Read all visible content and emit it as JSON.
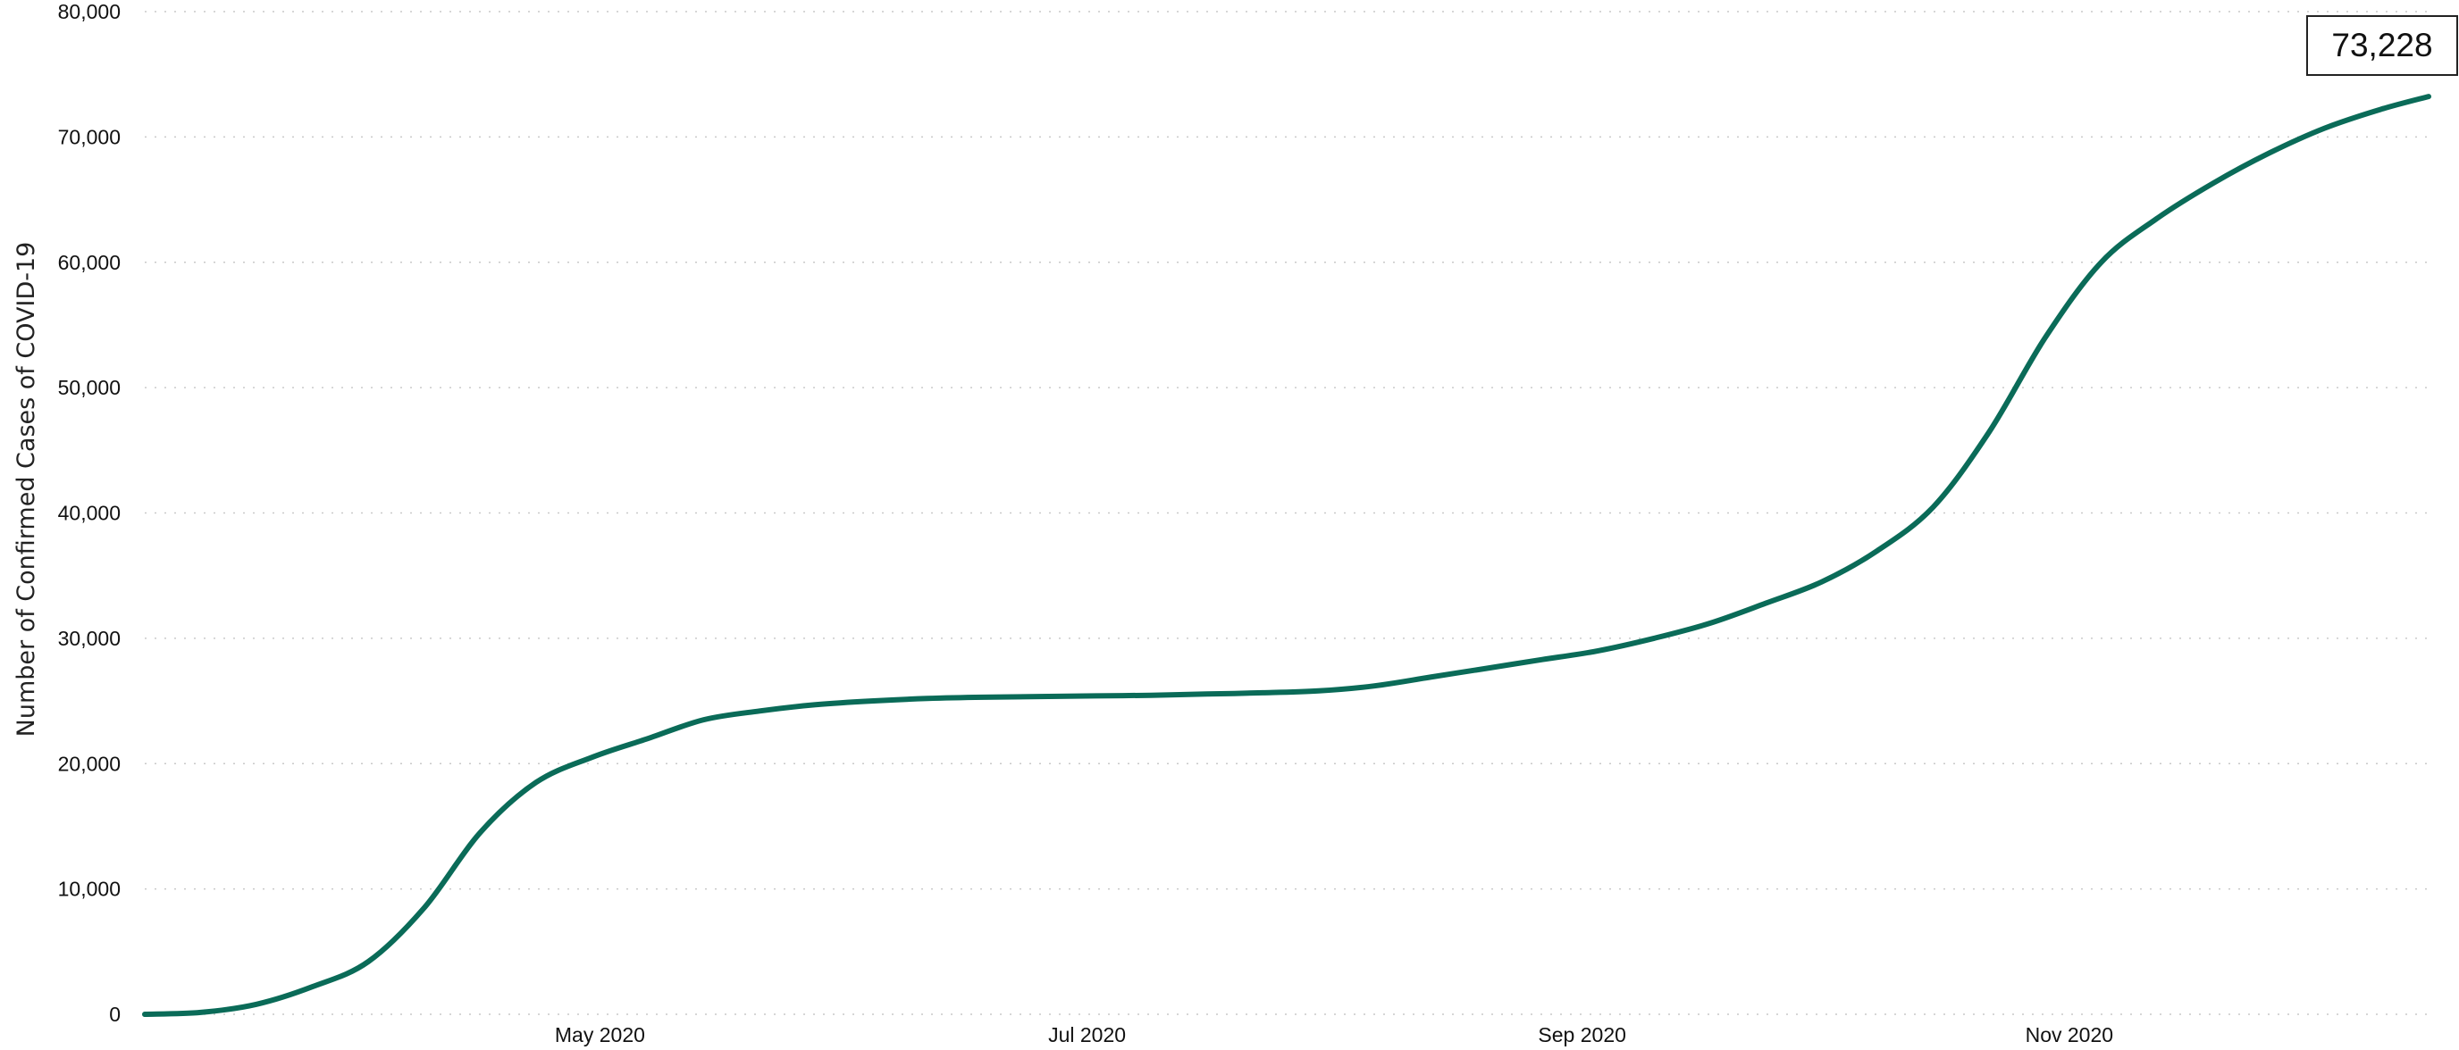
{
  "chart_data": {
    "type": "line",
    "title": "",
    "xlabel": "",
    "ylabel": "Number of Confirmed Cases of COVID-19",
    "ylim": [
      0,
      80000
    ],
    "xlim": [
      "2020-03-05",
      "2020-12-16"
    ],
    "grid": "horizontal dotted",
    "color": "#0a6b58",
    "y_ticks": [
      0,
      10000,
      20000,
      30000,
      40000,
      50000,
      60000,
      70000,
      80000
    ],
    "y_tick_labels": [
      "0",
      "10,000",
      "20,000",
      "30,000",
      "40,000",
      "50,000",
      "60,000",
      "70,000",
      "80,000"
    ],
    "x_ticks": [
      "2020-05-01",
      "2020-07-01",
      "2020-09-01",
      "2020-11-01"
    ],
    "x_tick_labels": [
      "May 2020",
      "Jul 2020",
      "Sep 2020",
      "Nov 2020"
    ],
    "latest_value_label": "73,228",
    "series": [
      {
        "x": [
          "2020-03-05",
          "2020-03-12",
          "2020-03-19",
          "2020-03-26",
          "2020-04-02",
          "2020-04-09",
          "2020-04-16",
          "2020-04-23",
          "2020-04-30",
          "2020-05-07",
          "2020-05-14",
          "2020-05-21",
          "2020-05-28",
          "2020-06-04",
          "2020-06-11",
          "2020-06-18",
          "2020-06-25",
          "2020-07-02",
          "2020-07-09",
          "2020-07-16",
          "2020-07-23",
          "2020-07-30",
          "2020-08-06",
          "2020-08-13",
          "2020-08-20",
          "2020-08-27",
          "2020-09-03",
          "2020-09-10",
          "2020-09-17",
          "2020-09-24",
          "2020-10-01",
          "2020-10-08",
          "2020-10-15",
          "2020-10-22",
          "2020-10-29",
          "2020-11-05",
          "2020-11-12",
          "2020-11-19",
          "2020-11-26",
          "2020-12-03",
          "2020-12-10",
          "2020-12-16"
        ],
        "values": [
          0,
          150,
          800,
          2200,
          4200,
          8500,
          14500,
          18500,
          20500,
          22000,
          23500,
          24200,
          24700,
          25000,
          25200,
          25300,
          25350,
          25400,
          25450,
          25550,
          25650,
          25800,
          26200,
          26900,
          27600,
          28300,
          29000,
          30000,
          31200,
          32800,
          34500,
          37000,
          40500,
          46500,
          54000,
          60000,
          63500,
          66300,
          68700,
          70700,
          72200,
          73228
        ]
      }
    ]
  }
}
